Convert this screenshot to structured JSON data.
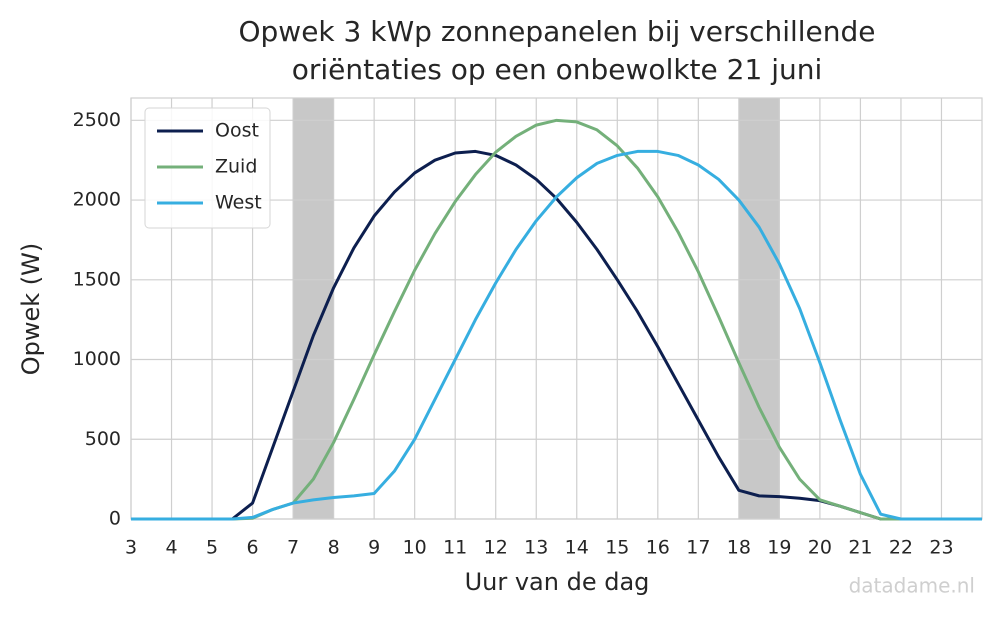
{
  "chart_data": {
    "type": "line",
    "title": [
      "Opwek 3 kWp zonnepanelen bij verschillende",
      "oriëntaties op een onbewolkte 21 juni"
    ],
    "x_label": "Uur van de dag",
    "y_label": "Opwek (W)",
    "watermark": "datadame.nl",
    "x": [
      3,
      3.5,
      4,
      4.5,
      5,
      5.5,
      6,
      6.5,
      7,
      7.5,
      8,
      8.5,
      9,
      9.5,
      10,
      10.5,
      11,
      11.5,
      12,
      12.5,
      13,
      13.5,
      14,
      14.5,
      15,
      15.5,
      16,
      16.5,
      17,
      17.5,
      18,
      18.5,
      19,
      19.5,
      20,
      20.5,
      21,
      21.5,
      22,
      22.5,
      23,
      23.5,
      24
    ],
    "series": [
      {
        "name": "Oost",
        "color": "#0d1f4f",
        "values": [
          0,
          0,
          0,
          0,
          0,
          0,
          100,
          450,
          800,
          1150,
          1450,
          1700,
          1900,
          2050,
          2170,
          2250,
          2295,
          2305,
          2280,
          2220,
          2130,
          2010,
          1860,
          1690,
          1500,
          1300,
          1080,
          850,
          620,
          390,
          180,
          145,
          140,
          130,
          115,
          80,
          40,
          0,
          0,
          0,
          0,
          0,
          0
        ]
      },
      {
        "name": "Zuid",
        "color": "#74b07a",
        "values": [
          0,
          0,
          0,
          0,
          0,
          0,
          5,
          60,
          100,
          250,
          480,
          750,
          1030,
          1300,
          1560,
          1790,
          1990,
          2160,
          2300,
          2400,
          2470,
          2500,
          2490,
          2440,
          2340,
          2200,
          2020,
          1800,
          1550,
          1270,
          980,
          700,
          450,
          250,
          120,
          80,
          40,
          0,
          0,
          0,
          0,
          0,
          0
        ]
      },
      {
        "name": "West",
        "color": "#36aee0",
        "values": [
          0,
          0,
          0,
          0,
          0,
          0,
          10,
          60,
          100,
          120,
          135,
          145,
          160,
          300,
          500,
          750,
          1000,
          1250,
          1480,
          1690,
          1870,
          2020,
          2140,
          2230,
          2280,
          2305,
          2305,
          2280,
          2220,
          2130,
          2000,
          1830,
          1600,
          1320,
          980,
          620,
          280,
          30,
          0,
          0,
          0,
          0,
          0
        ]
      }
    ],
    "shaded_spans": [
      [
        7,
        8
      ],
      [
        18,
        19
      ]
    ],
    "shade_color": "#c8c8c8",
    "xlim": [
      3,
      24
    ],
    "ylim": [
      0,
      2640
    ],
    "xticks": [
      3,
      4,
      5,
      6,
      7,
      8,
      9,
      10,
      11,
      12,
      13,
      14,
      15,
      16,
      17,
      18,
      19,
      20,
      21,
      22,
      23
    ],
    "yticks": [
      0,
      500,
      1000,
      1500,
      2000,
      2500
    ],
    "grid": true,
    "legend": "upper left"
  }
}
